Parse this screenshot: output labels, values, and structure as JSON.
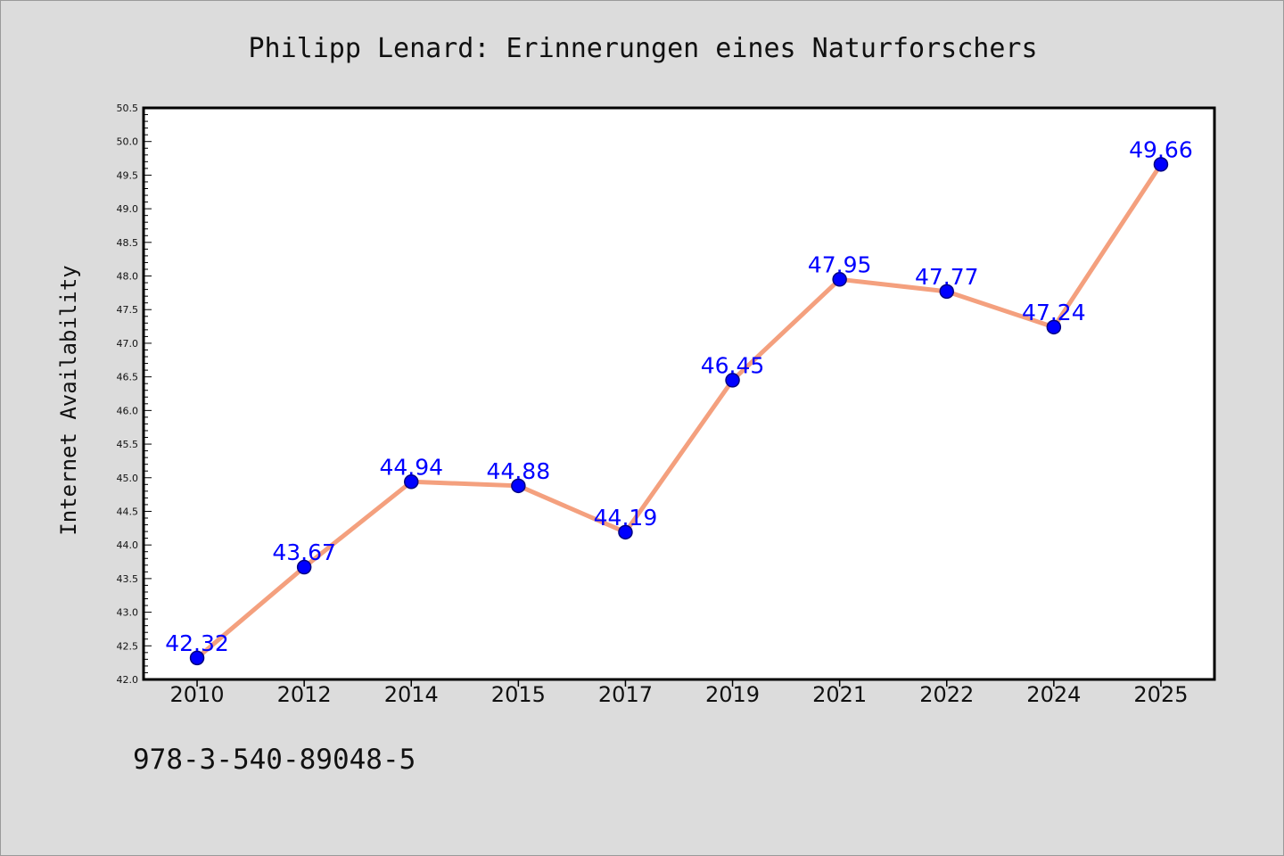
{
  "chart_data": {
    "type": "line",
    "title": "Philipp Lenard: Erinnerungen eines Naturforschers",
    "xlabel": "",
    "ylabel": "Internet Availability",
    "categories": [
      "2010",
      "2012",
      "2014",
      "2015",
      "2017",
      "2019",
      "2021",
      "2022",
      "2024",
      "2025"
    ],
    "series": [
      {
        "values": [
          42.32,
          43.67,
          44.94,
          44.88,
          44.19,
          46.45,
          47.95,
          47.77,
          47.24,
          49.66
        ],
        "labels": [
          "42.32",
          "43.67",
          "44.94",
          "44.88",
          "44.19",
          "46.45",
          "47.95",
          "47.77",
          "47.24",
          "49.66"
        ]
      }
    ],
    "ylim": [
      42.0,
      50.5
    ],
    "yticks": [
      "42.0",
      "42.5",
      "43.0",
      "43.5",
      "44.0",
      "44.5",
      "45.0",
      "45.5",
      "46.0",
      "46.5",
      "47.0",
      "47.5",
      "48.0",
      "48.5",
      "49.0",
      "49.5",
      "50.0",
      "50.5"
    ],
    "grid": false,
    "legend": "none",
    "colors": {
      "line": "#f4a07e",
      "marker": "#0000ff",
      "marker_edge": "#000080",
      "label": "#0000ff",
      "background": "#dcdcdc",
      "plot_background": "#ffffff"
    }
  },
  "footer": {
    "isbn": "978-3-540-89048-5"
  }
}
